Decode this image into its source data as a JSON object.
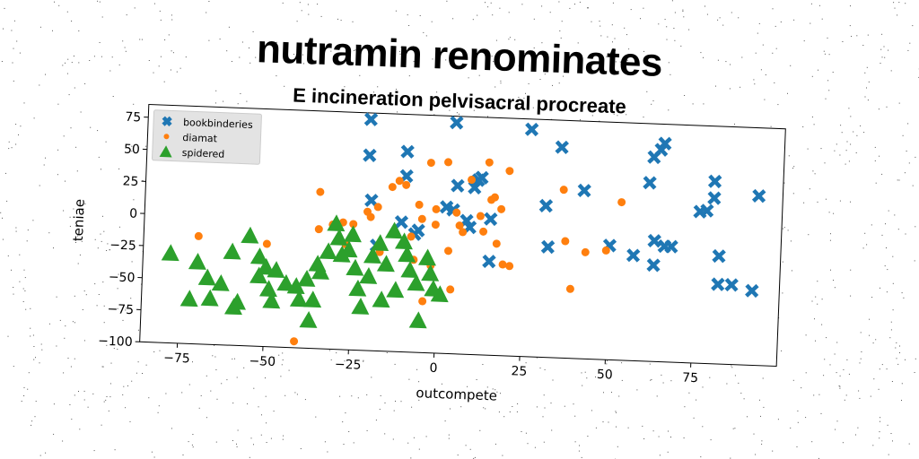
{
  "title": "nutramin renominates",
  "subtitle": "E incineration pelvisacral procreate",
  "chart_data": {
    "type": "scatter",
    "xlabel": "outcompete",
    "ylabel": "teniae",
    "xlim": [
      -86,
      100
    ],
    "ylim": [
      -100,
      85
    ],
    "xticks": [
      -75,
      -50,
      -25,
      0,
      25,
      50,
      75
    ],
    "yticks": [
      75,
      50,
      25,
      0,
      -25,
      -50,
      -75,
      -100
    ],
    "xtick_labels": [
      "−75",
      "−50",
      "−25",
      "0",
      "25",
      "50",
      "75"
    ],
    "ytick_labels": [
      "75",
      "50",
      "25",
      "0",
      "−25",
      "−50",
      "−75",
      "−100"
    ],
    "grid": false,
    "legend_position": "top-left",
    "series": [
      {
        "name": "bookbinderies",
        "marker": "x",
        "color": "#1f77b4",
        "points": [
          [
            -21,
            80
          ],
          [
            -21,
            52
          ],
          [
            -20,
            17
          ],
          [
            -10,
            56
          ],
          [
            -10,
            37
          ],
          [
            -11,
            1
          ],
          [
            -6,
            -5
          ],
          [
            2,
            14
          ],
          [
            4,
            12
          ],
          [
            4,
            80
          ],
          [
            5,
            31
          ],
          [
            8,
            4
          ],
          [
            9,
            -1
          ],
          [
            10,
            30
          ],
          [
            11,
            36
          ],
          [
            12,
            38
          ],
          [
            15,
            6
          ],
          [
            15,
            -27
          ],
          [
            26,
            77
          ],
          [
            31,
            18
          ],
          [
            32,
            -14
          ],
          [
            35,
            64
          ],
          [
            42,
            31
          ],
          [
            50,
            -11
          ],
          [
            57,
            -18
          ],
          [
            61,
            39
          ],
          [
            62,
            59
          ],
          [
            63,
            -6
          ],
          [
            63,
            -25
          ],
          [
            64,
            65
          ],
          [
            65,
            70
          ],
          [
            66,
            -10
          ],
          [
            68,
            -10
          ],
          [
            76,
            18
          ],
          [
            78,
            19
          ],
          [
            80,
            42
          ],
          [
            80,
            29
          ],
          [
            82,
            -16
          ],
          [
            82,
            -38
          ],
          [
            86,
            -38
          ],
          [
            92,
            -42
          ],
          [
            93,
            32
          ],
          [
            -18,
            -18
          ],
          [
            -7,
            -8
          ]
        ]
      },
      {
        "name": "diamat",
        "marker": "o",
        "color": "#ff7f0e",
        "points": [
          [
            -70,
            -16
          ],
          [
            -50,
            -20
          ],
          [
            -41,
            -95
          ],
          [
            -35,
            22
          ],
          [
            -35,
            -7
          ],
          [
            -31,
            -3
          ],
          [
            -28,
            -1
          ],
          [
            -27,
            -18
          ],
          [
            -25,
            -2
          ],
          [
            -21,
            8
          ],
          [
            -18,
            12
          ],
          [
            -17,
            -23
          ],
          [
            -14,
            28
          ],
          [
            -12,
            33
          ],
          [
            -10,
            30
          ],
          [
            -8,
            -10
          ],
          [
            -7,
            -28
          ],
          [
            -6,
            15
          ],
          [
            -5,
            4
          ],
          [
            -4,
            -60
          ],
          [
            -3,
            48
          ],
          [
            -1,
            12
          ],
          [
            -1,
            0
          ],
          [
            2,
            49
          ],
          [
            3,
            -20
          ],
          [
            4,
            -50
          ],
          [
            5,
            10
          ],
          [
            6,
            0
          ],
          [
            7,
            -5
          ],
          [
            9,
            36
          ],
          [
            12,
            8
          ],
          [
            13,
            -4
          ],
          [
            14,
            50
          ],
          [
            15,
            21
          ],
          [
            16,
            23
          ],
          [
            17,
            -13
          ],
          [
            18,
            14
          ],
          [
            19,
            -29
          ],
          [
            20,
            44
          ],
          [
            21,
            -30
          ],
          [
            36,
            31
          ],
          [
            37,
            -9
          ],
          [
            39,
            -46
          ],
          [
            43,
            -17
          ],
          [
            53,
            23
          ],
          [
            49,
            -15
          ],
          [
            -20,
            4
          ],
          [
            -2,
            -32
          ]
        ]
      },
      {
        "name": "spidered",
        "marker": "^",
        "color": "#2ca02c",
        "points": [
          [
            -78,
            -30
          ],
          [
            -72,
            -65
          ],
          [
            -70,
            -36
          ],
          [
            -67,
            -48
          ],
          [
            -66,
            -64
          ],
          [
            -63,
            -52
          ],
          [
            -60,
            -27
          ],
          [
            -59,
            -70
          ],
          [
            -58,
            -66
          ],
          [
            -55,
            -14
          ],
          [
            -52,
            -30
          ],
          [
            -52,
            -45
          ],
          [
            -50,
            -38
          ],
          [
            -49,
            -55
          ],
          [
            -48,
            -64
          ],
          [
            -47,
            -40
          ],
          [
            -44,
            -50
          ],
          [
            -41,
            -52
          ],
          [
            -40,
            -62
          ],
          [
            -38,
            -46
          ],
          [
            -37,
            -78
          ],
          [
            -36,
            -62
          ],
          [
            -35,
            -34
          ],
          [
            -34,
            -40
          ],
          [
            -32,
            -24
          ],
          [
            -29,
            -13
          ],
          [
            -28,
            -26
          ],
          [
            -26,
            -22
          ],
          [
            -25,
            -10
          ],
          [
            -24,
            -36
          ],
          [
            -23,
            -52
          ],
          [
            -22,
            -66
          ],
          [
            -20,
            -42
          ],
          [
            -19,
            -26
          ],
          [
            -17,
            -16
          ],
          [
            -16,
            -60
          ],
          [
            -15,
            -32
          ],
          [
            -13,
            -6
          ],
          [
            -12,
            -52
          ],
          [
            -10,
            -14
          ],
          [
            -9,
            -24
          ],
          [
            -8,
            -36
          ],
          [
            -6,
            -46
          ],
          [
            -5,
            -75
          ],
          [
            -3,
            -26
          ],
          [
            -2,
            -38
          ],
          [
            -1,
            -50
          ],
          [
            1,
            -54
          ],
          [
            -30,
            -2
          ]
        ]
      }
    ]
  }
}
